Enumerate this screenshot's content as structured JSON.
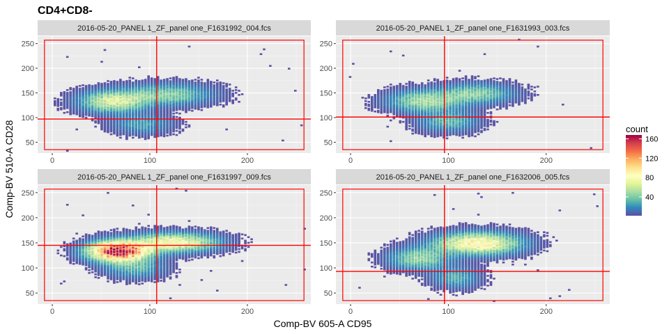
{
  "chart_data": {
    "type": "heatmap",
    "subtype": "hexbin-faceted",
    "title": "CD4+CD8-",
    "xlabel": "Comp-BV 605-A CD95",
    "ylabel": "Comp-BV 510-A CD28",
    "xlim": [
      -15,
      265
    ],
    "ylim": [
      28,
      265
    ],
    "x_ticks": [
      0,
      100,
      200
    ],
    "y_ticks": [
      50,
      100,
      150,
      200,
      250
    ],
    "grid": true,
    "legend": {
      "title": "count",
      "placement": "right",
      "ticks": [
        40,
        80,
        120,
        160
      ],
      "range": [
        1,
        168
      ],
      "colors": [
        "#5e4fa2",
        "#3288bd",
        "#66c2a5",
        "#abdda4",
        "#e6f598",
        "#ffffbf",
        "#fee08b",
        "#fdae61",
        "#f46d43",
        "#d53e4f",
        "#9e0142"
      ]
    },
    "gate_color": "#ff0000",
    "panels": [
      {
        "strip": "2016-05-20_PANEL 1_ZF_panel one_F1631992_004.fcs",
        "gate_rect": {
          "x": [
            -8,
            258
          ],
          "y": [
            35,
            257
          ]
        },
        "gate_lines": {
          "x": 107,
          "y": 97
        },
        "clusters": [
          {
            "cx": 62,
            "cy": 132,
            "sx": 22,
            "sy": 14,
            "peak": 65
          },
          {
            "cx": 118,
            "cy": 146,
            "sx": 30,
            "sy": 14,
            "peak": 42
          },
          {
            "cx": 92,
            "cy": 86,
            "sx": 20,
            "sy": 13,
            "peak": 25
          }
        ]
      },
      {
        "strip": "2016-05-20_PANEL 1_ZF_panel one_F1631993_003.fcs",
        "gate_rect": {
          "x": [
            -8,
            258
          ],
          "y": [
            35,
            257
          ]
        },
        "gate_lines": {
          "x": 96,
          "y": 101
        },
        "clusters": [
          {
            "cx": 75,
            "cy": 133,
            "sx": 24,
            "sy": 14,
            "peak": 50
          },
          {
            "cx": 128,
            "cy": 148,
            "sx": 25,
            "sy": 13,
            "peak": 42
          },
          {
            "cx": 100,
            "cy": 92,
            "sx": 20,
            "sy": 14,
            "peak": 32
          }
        ]
      },
      {
        "strip": "2016-05-20_PANEL 1_ZF_panel one_F1631997_009.fcs",
        "gate_rect": {
          "x": [
            -8,
            258
          ],
          "y": [
            35,
            257
          ]
        },
        "gate_lines": {
          "x": 107,
          "y": 145
        },
        "clusters": [
          {
            "cx": 68,
            "cy": 133,
            "sx": 20,
            "sy": 13,
            "peak": 165
          },
          {
            "cx": 125,
            "cy": 150,
            "sx": 28,
            "sy": 12,
            "peak": 82
          },
          {
            "cx": 85,
            "cy": 100,
            "sx": 20,
            "sy": 14,
            "peak": 30
          }
        ]
      },
      {
        "strip": "2016-05-20_PANEL 1_ZF_panel one_F1632006_005.fcs",
        "gate_rect": {
          "x": [
            -8,
            258
          ],
          "y": [
            35,
            257
          ]
        },
        "gate_lines": {
          "x": 96,
          "y": 93
        },
        "clusters": [
          {
            "cx": 70,
            "cy": 118,
            "sx": 20,
            "sy": 14,
            "peak": 45
          },
          {
            "cx": 130,
            "cy": 148,
            "sx": 28,
            "sy": 14,
            "peak": 90
          },
          {
            "cx": 108,
            "cy": 80,
            "sx": 16,
            "sy": 14,
            "peak": 28
          }
        ]
      }
    ]
  }
}
